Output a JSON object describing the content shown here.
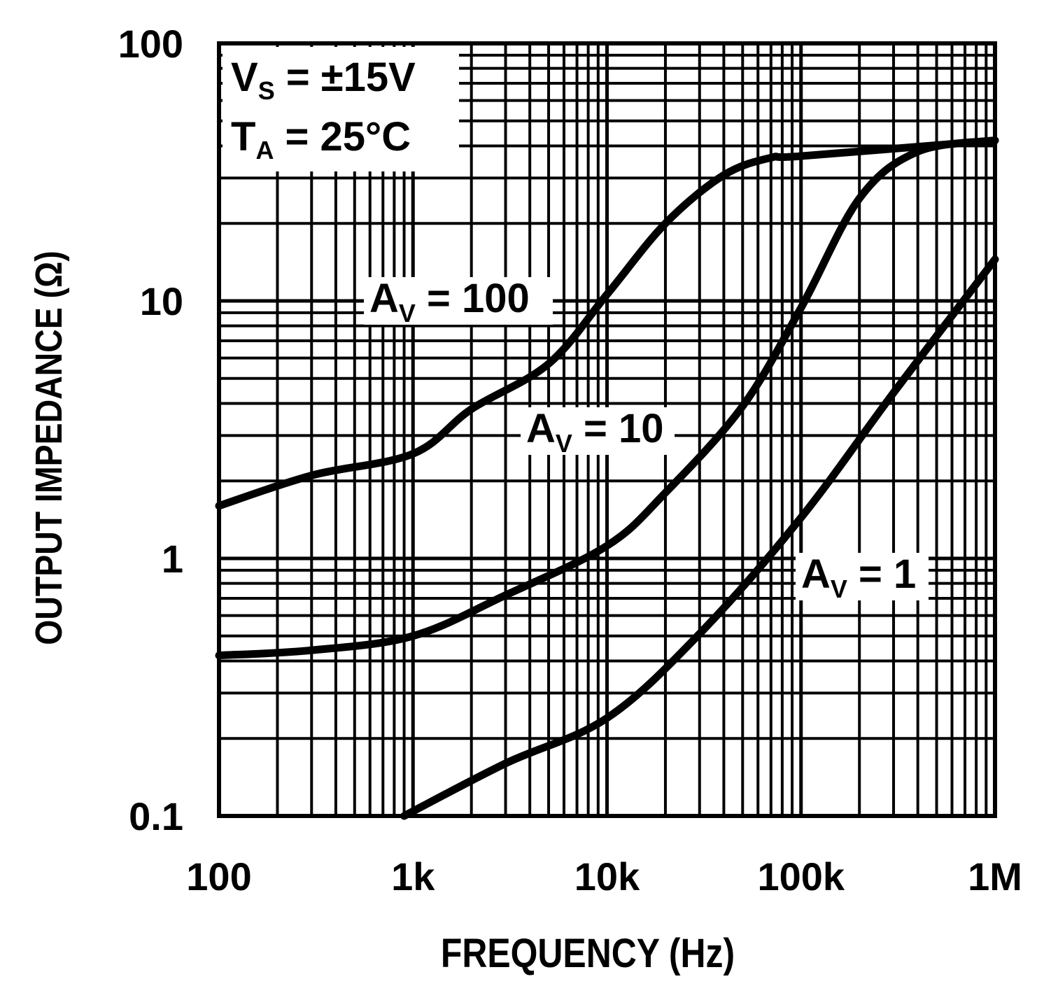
{
  "chart_data": {
    "type": "line",
    "xlabel": "FREQUENCY (Hz)",
    "ylabel": "OUTPUT IMPEDANCE (Ω)",
    "x_scale": "log",
    "y_scale": "log",
    "xlim": [
      100,
      1000000
    ],
    "ylim": [
      0.1,
      100
    ],
    "grid": true,
    "x_ticks": [
      {
        "value": 100,
        "label": "100"
      },
      {
        "value": 1000,
        "label": "1k"
      },
      {
        "value": 10000,
        "label": "10k"
      },
      {
        "value": 100000,
        "label": "100k"
      },
      {
        "value": 1000000,
        "label": "1M"
      }
    ],
    "y_ticks": [
      {
        "value": 0.1,
        "label": "0.1"
      },
      {
        "value": 1,
        "label": "1"
      },
      {
        "value": 10,
        "label": "10"
      },
      {
        "value": 100,
        "label": "100"
      }
    ],
    "conditions": {
      "line1_main": "V",
      "line1_sub": "S",
      "line1_rest": "= ±15V",
      "line2_main": "T",
      "line2_sub": "A",
      "line2_rest": "= 25°C"
    },
    "series": [
      {
        "name": "AV = 100",
        "label_main": "A",
        "label_sub": "V",
        "label_rest": "= 100",
        "x": [
          100,
          300,
          1000,
          2000,
          5000,
          10000,
          20000,
          40000,
          70000,
          100000,
          1000000
        ],
        "y": [
          1.6,
          2.1,
          2.55,
          3.8,
          5.7,
          10.6,
          20,
          30.8,
          36,
          36.5,
          42
        ]
      },
      {
        "name": "AV = 10",
        "label_main": "A",
        "label_sub": "V",
        "label_rest": "= 10",
        "x": [
          100,
          300,
          1000,
          3000,
          10000,
          20000,
          50000,
          100000,
          200000,
          400000,
          1000000
        ],
        "y": [
          0.42,
          0.44,
          0.5,
          0.72,
          1.12,
          1.8,
          3.9,
          9.4,
          25,
          38,
          42
        ]
      },
      {
        "name": "AV = 1",
        "label_main": "A",
        "label_sub": "V",
        "label_rest": "= 1",
        "x": [
          900,
          3000,
          10000,
          30000,
          100000,
          300000,
          1000000
        ],
        "y": [
          0.1,
          0.16,
          0.24,
          0.51,
          1.44,
          4.4,
          14.5
        ]
      }
    ]
  }
}
